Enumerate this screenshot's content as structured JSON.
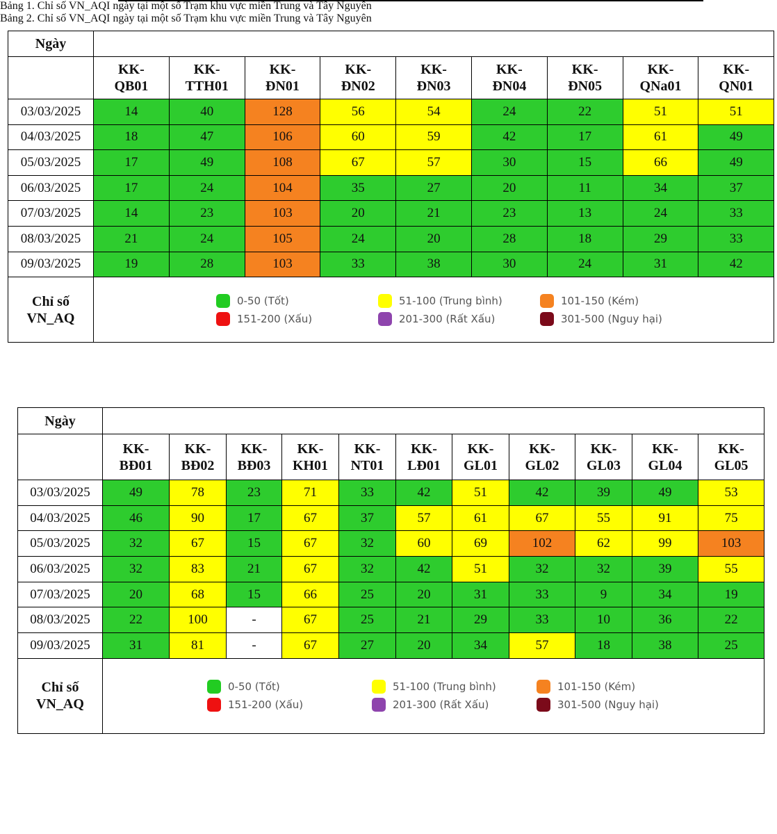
{
  "tables": [
    {
      "title": "Bảng 1. Chỉ số VN_AQI ngày tại một số Trạm khu vực miền Trung và Tây Nguyên",
      "header_label": "Ngày",
      "stations": [
        "KK-QB01",
        "KK-TTH01",
        "KK-ĐN01",
        "KK-ĐN02",
        "KK-ĐN03",
        "KK-ĐN04",
        "KK-ĐN05",
        "KK-QNa01",
        "KK-QN01"
      ],
      "rows": [
        {
          "date": "03/03/2025",
          "values": [
            14,
            40,
            128,
            56,
            54,
            24,
            22,
            51,
            51
          ],
          "colors": [
            "#2ecc2e",
            "#2ecc2e",
            "#f58220",
            "#ffff00",
            "#ffff00",
            "#2ecc2e",
            "#2ecc2e",
            "#ffff00",
            "#ffff00"
          ]
        },
        {
          "date": "04/03/2025",
          "values": [
            18,
            47,
            106,
            60,
            59,
            42,
            17,
            61,
            49
          ],
          "colors": [
            "#2ecc2e",
            "#2ecc2e",
            "#f58220",
            "#ffff00",
            "#ffff00",
            "#2ecc2e",
            "#2ecc2e",
            "#ffff00",
            "#2ecc2e"
          ]
        },
        {
          "date": "05/03/2025",
          "values": [
            17,
            49,
            108,
            67,
            57,
            30,
            15,
            66,
            49
          ],
          "colors": [
            "#2ecc2e",
            "#2ecc2e",
            "#f58220",
            "#ffff00",
            "#ffff00",
            "#2ecc2e",
            "#2ecc2e",
            "#ffff00",
            "#2ecc2e"
          ]
        },
        {
          "date": "06/03/2025",
          "values": [
            17,
            24,
            104,
            35,
            27,
            20,
            11,
            34,
            37
          ],
          "colors": [
            "#2ecc2e",
            "#2ecc2e",
            "#f58220",
            "#2ecc2e",
            "#2ecc2e",
            "#2ecc2e",
            "#2ecc2e",
            "#2ecc2e",
            "#2ecc2e"
          ]
        },
        {
          "date": "07/03/2025",
          "values": [
            14,
            23,
            103,
            20,
            21,
            23,
            13,
            24,
            33
          ],
          "colors": [
            "#2ecc2e",
            "#2ecc2e",
            "#f58220",
            "#2ecc2e",
            "#2ecc2e",
            "#2ecc2e",
            "#2ecc2e",
            "#2ecc2e",
            "#2ecc2e"
          ]
        },
        {
          "date": "08/03/2025",
          "values": [
            21,
            24,
            105,
            24,
            20,
            28,
            18,
            29,
            33
          ],
          "colors": [
            "#2ecc2e",
            "#2ecc2e",
            "#f58220",
            "#2ecc2e",
            "#2ecc2e",
            "#2ecc2e",
            "#2ecc2e",
            "#2ecc2e",
            "#2ecc2e"
          ]
        },
        {
          "date": "09/03/2025",
          "values": [
            19,
            28,
            103,
            33,
            38,
            30,
            24,
            31,
            42
          ],
          "colors": [
            "#2ecc2e",
            "#2ecc2e",
            "#f58220",
            "#2ecc2e",
            "#2ecc2e",
            "#2ecc2e",
            "#2ecc2e",
            "#2ecc2e",
            "#2ecc2e"
          ]
        }
      ],
      "legend_label": [
        "Chỉ số",
        "VN_AQ"
      ],
      "legend": [
        {
          "label": "0-50 (Tốt)",
          "color": "#22cc22"
        },
        {
          "label": "51-100 (Trung bình)",
          "color": "#ffff00"
        },
        {
          "label": "101-150 (Kém)",
          "color": "#f58220"
        },
        {
          "label": "151-200 (Xấu)",
          "color": "#ee1111"
        },
        {
          "label": "201-300 (Rất Xấu)",
          "color": "#8e44ad"
        },
        {
          "label": "301-500 (Nguy hại)",
          "color": "#7b0a1a"
        }
      ]
    },
    {
      "title": "Bảng 2. Chỉ số VN_AQI ngày tại một số Trạm khu vực miền Trung và Tây Nguyên",
      "header_label": "Ngày",
      "stations": [
        "KK-BĐ01",
        "KK-BĐ02",
        "KK-BĐ03",
        "KK-KH01",
        "KK-NT01",
        "KK-LĐ01",
        "KK-GL01",
        "KK-GL02",
        "KK-GL03",
        "KK-GL04",
        "KK-GL05"
      ],
      "rows": [
        {
          "date": "03/03/2025",
          "values": [
            49,
            78,
            23,
            71,
            33,
            42,
            51,
            42,
            39,
            49,
            53
          ],
          "colors": [
            "#2ecc2e",
            "#ffff00",
            "#2ecc2e",
            "#ffff00",
            "#2ecc2e",
            "#2ecc2e",
            "#ffff00",
            "#2ecc2e",
            "#2ecc2e",
            "#2ecc2e",
            "#ffff00"
          ]
        },
        {
          "date": "04/03/2025",
          "values": [
            46,
            90,
            17,
            67,
            37,
            57,
            61,
            67,
            55,
            91,
            75
          ],
          "colors": [
            "#2ecc2e",
            "#ffff00",
            "#2ecc2e",
            "#ffff00",
            "#2ecc2e",
            "#ffff00",
            "#ffff00",
            "#ffff00",
            "#ffff00",
            "#ffff00",
            "#ffff00"
          ]
        },
        {
          "date": "05/03/2025",
          "values": [
            32,
            67,
            15,
            67,
            32,
            60,
            69,
            102,
            62,
            99,
            103
          ],
          "colors": [
            "#2ecc2e",
            "#ffff00",
            "#2ecc2e",
            "#ffff00",
            "#2ecc2e",
            "#ffff00",
            "#ffff00",
            "#f58220",
            "#ffff00",
            "#ffff00",
            "#f58220"
          ]
        },
        {
          "date": "06/03/2025",
          "values": [
            32,
            83,
            21,
            67,
            32,
            42,
            51,
            32,
            32,
            39,
            55
          ],
          "colors": [
            "#2ecc2e",
            "#ffff00",
            "#2ecc2e",
            "#ffff00",
            "#2ecc2e",
            "#2ecc2e",
            "#ffff00",
            "#2ecc2e",
            "#2ecc2e",
            "#2ecc2e",
            "#ffff00"
          ]
        },
        {
          "date": "07/03/2025",
          "values": [
            20,
            68,
            15,
            66,
            25,
            20,
            31,
            33,
            9,
            34,
            19
          ],
          "colors": [
            "#2ecc2e",
            "#ffff00",
            "#2ecc2e",
            "#ffff00",
            "#2ecc2e",
            "#2ecc2e",
            "#2ecc2e",
            "#2ecc2e",
            "#2ecc2e",
            "#2ecc2e",
            "#2ecc2e"
          ]
        },
        {
          "date": "08/03/2025",
          "values": [
            22,
            100,
            "-",
            67,
            25,
            21,
            29,
            33,
            10,
            36,
            22
          ],
          "colors": [
            "#2ecc2e",
            "#ffff00",
            "#ffffff",
            "#ffff00",
            "#2ecc2e",
            "#2ecc2e",
            "#2ecc2e",
            "#2ecc2e",
            "#2ecc2e",
            "#2ecc2e",
            "#2ecc2e"
          ]
        },
        {
          "date": "09/03/2025",
          "values": [
            31,
            81,
            "-",
            67,
            27,
            20,
            34,
            57,
            18,
            38,
            25
          ],
          "colors": [
            "#2ecc2e",
            "#ffff00",
            "#ffffff",
            "#ffff00",
            "#2ecc2e",
            "#2ecc2e",
            "#2ecc2e",
            "#ffff00",
            "#2ecc2e",
            "#2ecc2e",
            "#2ecc2e"
          ]
        }
      ],
      "legend_label": [
        "Chỉ số",
        "VN_AQ"
      ],
      "legend": [
        {
          "label": "0-50 (Tốt)",
          "color": "#22cc22"
        },
        {
          "label": "51-100 (Trung bình)",
          "color": "#ffff00"
        },
        {
          "label": "101-150 (Kém)",
          "color": "#f58220"
        },
        {
          "label": "151-200 (Xấu)",
          "color": "#ee1111"
        },
        {
          "label": "201-300 (Rất Xấu)",
          "color": "#8e44ad"
        },
        {
          "label": "301-500 (Nguy hại)",
          "color": "#7b0a1a"
        }
      ]
    }
  ]
}
